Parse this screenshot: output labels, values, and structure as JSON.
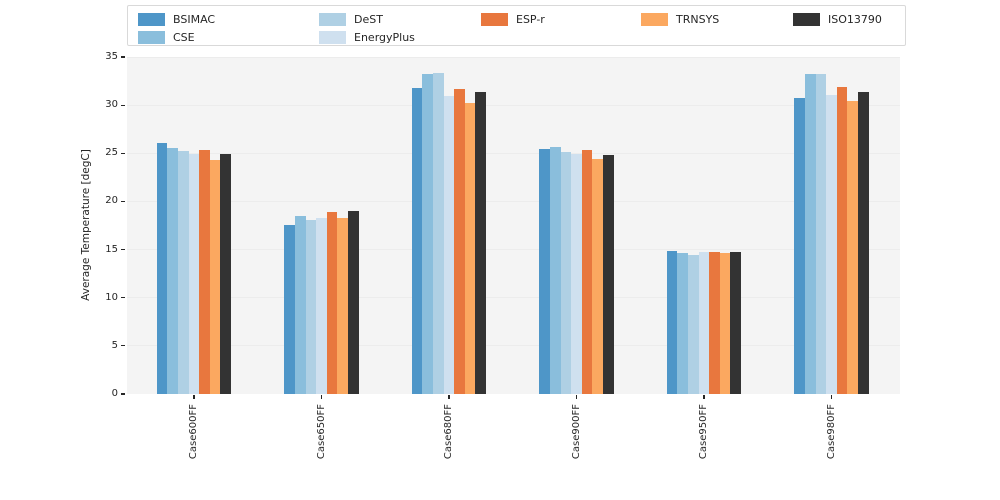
{
  "chart_data": {
    "type": "bar",
    "title": "",
    "xlabel": "",
    "ylabel": "Average Temperature [degC]",
    "ylim": [
      0,
      35
    ],
    "yticks": [
      0,
      5,
      10,
      15,
      20,
      25,
      30,
      35
    ],
    "grid": true,
    "legend_position": "top",
    "plot_background": "#f4f4f4",
    "figure_background": "#ffffff",
    "gridline_color": "#ececec",
    "text_color": "#262626",
    "categories": [
      "Case600FF",
      "Case650FF",
      "Case680FF",
      "Case900FF",
      "Case950FF",
      "Case980FF"
    ],
    "series": [
      {
        "name": "BSIMAC",
        "color": "#4e96c8",
        "values": [
          26.1,
          17.6,
          31.8,
          25.4,
          14.9,
          30.7
        ]
      },
      {
        "name": "CSE",
        "color": "#8abedc",
        "values": [
          25.6,
          18.5,
          33.2,
          25.7,
          14.6,
          33.2
        ]
      },
      {
        "name": "DeST",
        "color": "#afd0e4",
        "values": [
          25.2,
          18.1,
          33.3,
          25.1,
          14.4,
          33.2
        ]
      },
      {
        "name": "EnergyPlus",
        "color": "#cfe0ef",
        "values": [
          24.9,
          18.3,
          31.0,
          24.9,
          14.7,
          31.1
        ]
      },
      {
        "name": "ESP-r",
        "color": "#e8773e",
        "values": [
          25.3,
          18.9,
          31.7,
          25.3,
          14.7,
          31.9
        ]
      },
      {
        "name": "TRNSYS",
        "color": "#fba860",
        "values": [
          24.3,
          18.3,
          30.2,
          24.4,
          14.6,
          30.4
        ]
      },
      {
        "name": "ISO13790",
        "color": "#333333",
        "values": [
          24.9,
          19.0,
          31.4,
          24.8,
          14.7,
          31.4
        ]
      }
    ],
    "legend_columns": [
      [
        "BSIMAC",
        "CSE"
      ],
      [
        "DeST",
        "EnergyPlus"
      ],
      [
        "ESP-r"
      ],
      [
        "TRNSYS"
      ],
      [
        "ISO13790"
      ]
    ]
  }
}
